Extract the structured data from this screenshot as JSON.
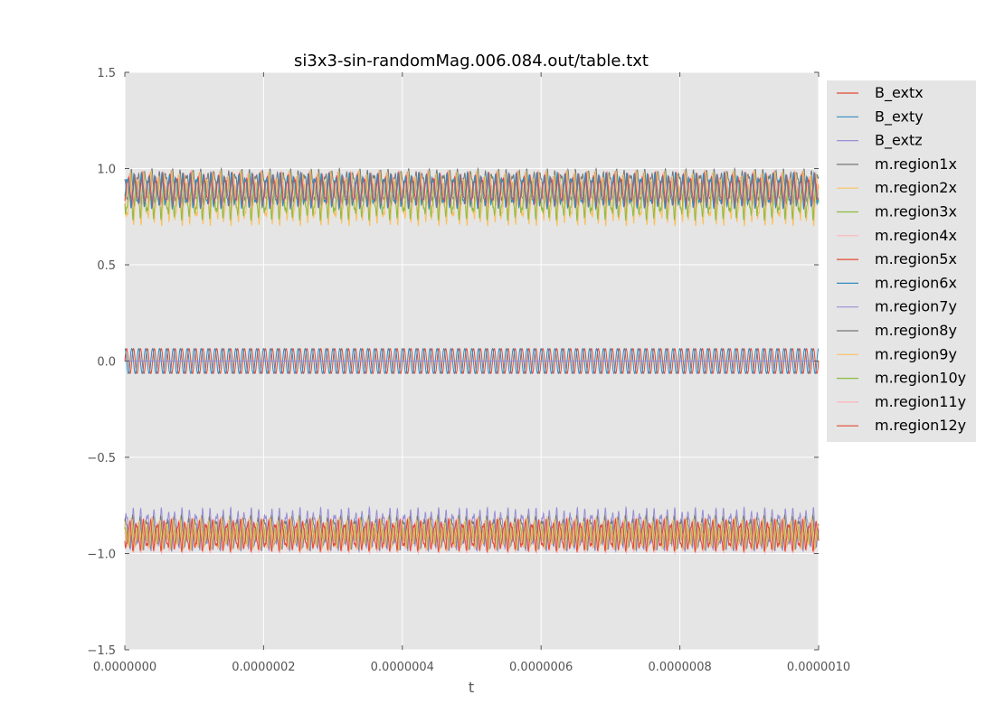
{
  "chart_data": {
    "type": "line",
    "title": "si3x3-sin-randomMag.006.084.out/table.txt",
    "xlabel": "t",
    "ylabel": "",
    "xlim": [
      0,
      1e-06
    ],
    "ylim": [
      -1.5,
      1.5
    ],
    "x_ticks": [
      0,
      2e-07,
      4e-07,
      6e-07,
      8e-07,
      1e-06
    ],
    "x_tick_labels": [
      "0.0000000",
      "0.0000002",
      "0.0000004",
      "0.0000006",
      "0.0000008",
      "0.0000010"
    ],
    "y_ticks": [
      -1.5,
      -1.0,
      -0.5,
      0.0,
      0.5,
      1.0,
      1.5
    ],
    "y_tick_labels": [
      "−1.5",
      "−1.0",
      "−0.5",
      "0.0",
      "0.5",
      "1.0",
      "1.5"
    ],
    "grid": true,
    "legend_position": "outside-right",
    "plot_background": "#e5e5e5",
    "series": [
      {
        "name": "B_extx",
        "color": "#e24a33",
        "kind": "oscillation",
        "center": 0.0,
        "amplitude": 0.065,
        "period_s": 1e-08,
        "phase": 0.0
      },
      {
        "name": "B_exty",
        "color": "#348abd",
        "kind": "oscillation",
        "center": 0.0,
        "amplitude": 0.065,
        "period_s": 1e-08,
        "phase": 1.5708
      },
      {
        "name": "B_extz",
        "color": "#988ed5",
        "kind": "constant",
        "value": 0.0
      },
      {
        "name": "m.region1x",
        "color": "#777777",
        "kind": "band",
        "low": 0.8,
        "high": 1.0,
        "period_s": 1e-08
      },
      {
        "name": "m.region2x",
        "color": "#fbc15e",
        "kind": "band",
        "low": 0.7,
        "high": 0.99,
        "period_s": 1e-08
      },
      {
        "name": "m.region3x",
        "color": "#8eba42",
        "kind": "band",
        "low": 0.73,
        "high": 0.99,
        "period_s": 1e-08
      },
      {
        "name": "m.region4x",
        "color": "#ffb5b8",
        "kind": "band",
        "low": 0.8,
        "high": 0.99,
        "period_s": 1e-08
      },
      {
        "name": "m.region5x",
        "color": "#e24a33",
        "kind": "band",
        "low": 0.8,
        "high": 0.98,
        "period_s": 1e-08
      },
      {
        "name": "m.region6x",
        "color": "#348abd",
        "kind": "band",
        "low": 0.79,
        "high": 0.98,
        "period_s": 1e-08
      },
      {
        "name": "m.region7y",
        "color": "#988ed5",
        "kind": "band",
        "low": -0.99,
        "high": -0.76,
        "period_s": 1e-08
      },
      {
        "name": "m.region8y",
        "color": "#777777",
        "kind": "band",
        "low": -0.98,
        "high": -0.8,
        "period_s": 1e-08
      },
      {
        "name": "m.region9y",
        "color": "#fbc15e",
        "kind": "band",
        "low": -0.98,
        "high": -0.82,
        "period_s": 1e-08
      },
      {
        "name": "m.region10y",
        "color": "#8eba42",
        "kind": "band",
        "low": -0.98,
        "high": -0.82,
        "period_s": 1e-08
      },
      {
        "name": "m.region11y",
        "color": "#ffb5b8",
        "kind": "band",
        "low": -1.0,
        "high": -0.81,
        "period_s": 1e-08
      },
      {
        "name": "m.region12y",
        "color": "#e24a33",
        "kind": "band",
        "low": -0.99,
        "high": -0.82,
        "period_s": 1e-08
      }
    ]
  }
}
